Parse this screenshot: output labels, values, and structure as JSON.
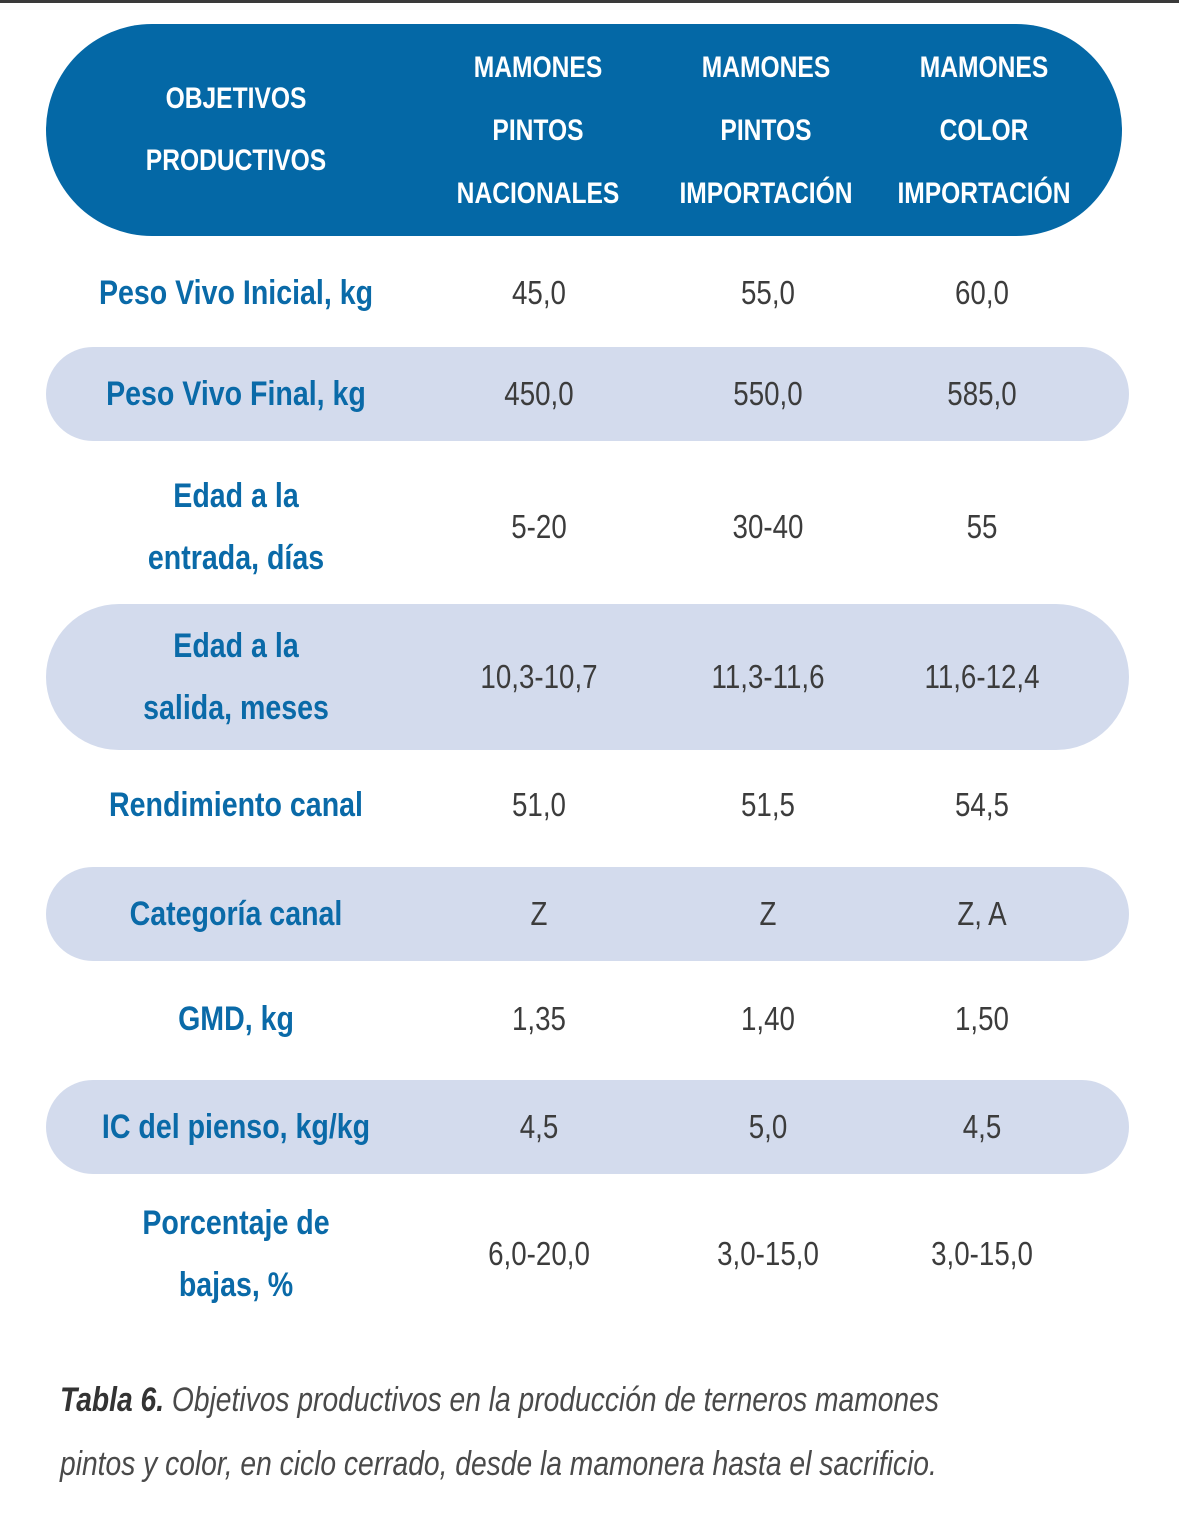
{
  "header": {
    "col0": [
      "OBJETIVOS",
      "PRODUCTIVOS"
    ],
    "col1": [
      "MAMONES",
      "PINTOS",
      "NACIONALES"
    ],
    "col2": [
      "MAMONES",
      "PINTOS",
      "IMPORTACIÓN"
    ],
    "col3": [
      "MAMONES",
      "COLOR",
      "IMPORTACIÓN"
    ]
  },
  "rows": [
    {
      "label": [
        "Peso Vivo Inicial, kg"
      ],
      "values": [
        "45,0",
        "55,0",
        "60,0"
      ]
    },
    {
      "label": [
        "Peso Vivo Final, kg"
      ],
      "values": [
        "450,0",
        "550,0",
        "585,0"
      ]
    },
    {
      "label": [
        "Edad a la",
        "entrada, días"
      ],
      "values": [
        "5-20",
        "30-40",
        "55"
      ]
    },
    {
      "label": [
        "Edad a la",
        "salida, meses"
      ],
      "values": [
        "10,3-10,7",
        "11,3-11,6",
        "11,6-12,4"
      ]
    },
    {
      "label": [
        "Rendimiento canal"
      ],
      "values": [
        "51,0",
        "51,5",
        "54,5"
      ]
    },
    {
      "label": [
        "Categoría canal"
      ],
      "values": [
        "Z",
        "Z",
        "Z, A"
      ]
    },
    {
      "label": [
        "GMD, kg"
      ],
      "values": [
        "1,35",
        "1,40",
        "1,50"
      ]
    },
    {
      "label": [
        "IC del pienso, kg/kg"
      ],
      "values": [
        "4,5",
        "5,0",
        "4,5"
      ]
    },
    {
      "label": [
        "Porcentaje de",
        "bajas, %"
      ],
      "values": [
        "6,0-20,0",
        "3,0-15,0",
        "3,0-15,0"
      ]
    }
  ],
  "caption": {
    "label": "Tabla 6.",
    "line1": " Objetivos productivos en la producción de terneros mamones",
    "line2": "pintos y color, en ciclo cerrado, desde la mamonera hasta el sacrificio."
  },
  "colors": {
    "header_bg": "#0468a6",
    "shaded_row": "#d3dbed",
    "label_text": "#0a6aa8",
    "value_text": "#3c3c3c"
  }
}
